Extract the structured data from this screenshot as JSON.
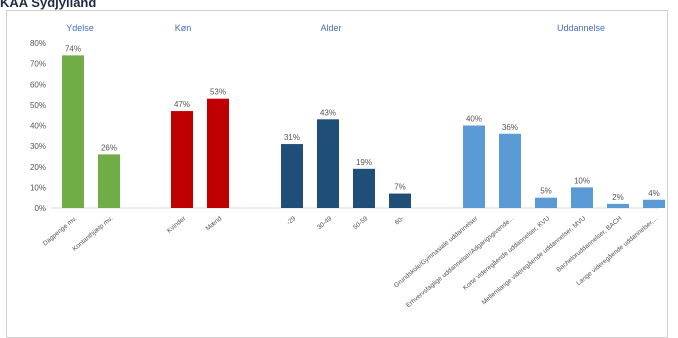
{
  "page": {
    "title": "KAA Sydjylland"
  },
  "chart_data": {
    "type": "bar",
    "ylim": [
      0,
      80
    ],
    "yticks": [
      0,
      10,
      20,
      30,
      40,
      50,
      60,
      70,
      80
    ],
    "ytick_labels": [
      "0%",
      "10%",
      "20%",
      "30%",
      "40%",
      "50%",
      "60%",
      "70%",
      "80%"
    ],
    "grid": false,
    "title_color": "#4472c4",
    "groups": [
      {
        "title": "Ydelse",
        "bars": [
          {
            "category": "Dagpenge mv.",
            "value": 74,
            "label": "74%",
            "color": "#70ad47"
          },
          {
            "category": "Kontanthjælp mv.",
            "value": 26,
            "label": "26%",
            "color": "#70ad47"
          }
        ]
      },
      {
        "title": "Køn",
        "bars": [
          {
            "category": "Kvinder",
            "value": 47,
            "label": "47%",
            "color": "#c00000"
          },
          {
            "category": "Mænd",
            "value": 53,
            "label": "53%",
            "color": "#c00000"
          }
        ]
      },
      {
        "title": "Alder",
        "bars": [
          {
            "category": "-29",
            "value": 31,
            "label": "31%",
            "color": "#1f4e79"
          },
          {
            "category": "30-49",
            "value": 43,
            "label": "43%",
            "color": "#1f4e79"
          },
          {
            "category": "50-59",
            "value": 19,
            "label": "19%",
            "color": "#1f4e79"
          },
          {
            "category": "60-",
            "value": 7,
            "label": "7%",
            "color": "#1f4e79"
          }
        ]
      },
      {
        "title": "Uddannelse",
        "bars": [
          {
            "category": "Grundskole/Gymnasiale uddannelser",
            "value": 40,
            "label": "40%",
            "color": "#5b9bd5"
          },
          {
            "category": "Erhvervsfaglige uddannelser/Adgangsgivende...",
            "value": 36,
            "label": "36%",
            "color": "#5b9bd5"
          },
          {
            "category": "Korte videregående uddannelser, KVU",
            "value": 5,
            "label": "5%",
            "color": "#5b9bd5"
          },
          {
            "category": "Mellemlange videregående uddannelser, MVU",
            "value": 10,
            "label": "10%",
            "color": "#5b9bd5"
          },
          {
            "category": "Bacheloruddannelser, BACH",
            "value": 2,
            "label": "2%",
            "color": "#5b9bd5"
          },
          {
            "category": "Lange videregående uddannelser,...",
            "value": 4,
            "label": "4%",
            "color": "#5b9bd5"
          }
        ]
      }
    ]
  }
}
